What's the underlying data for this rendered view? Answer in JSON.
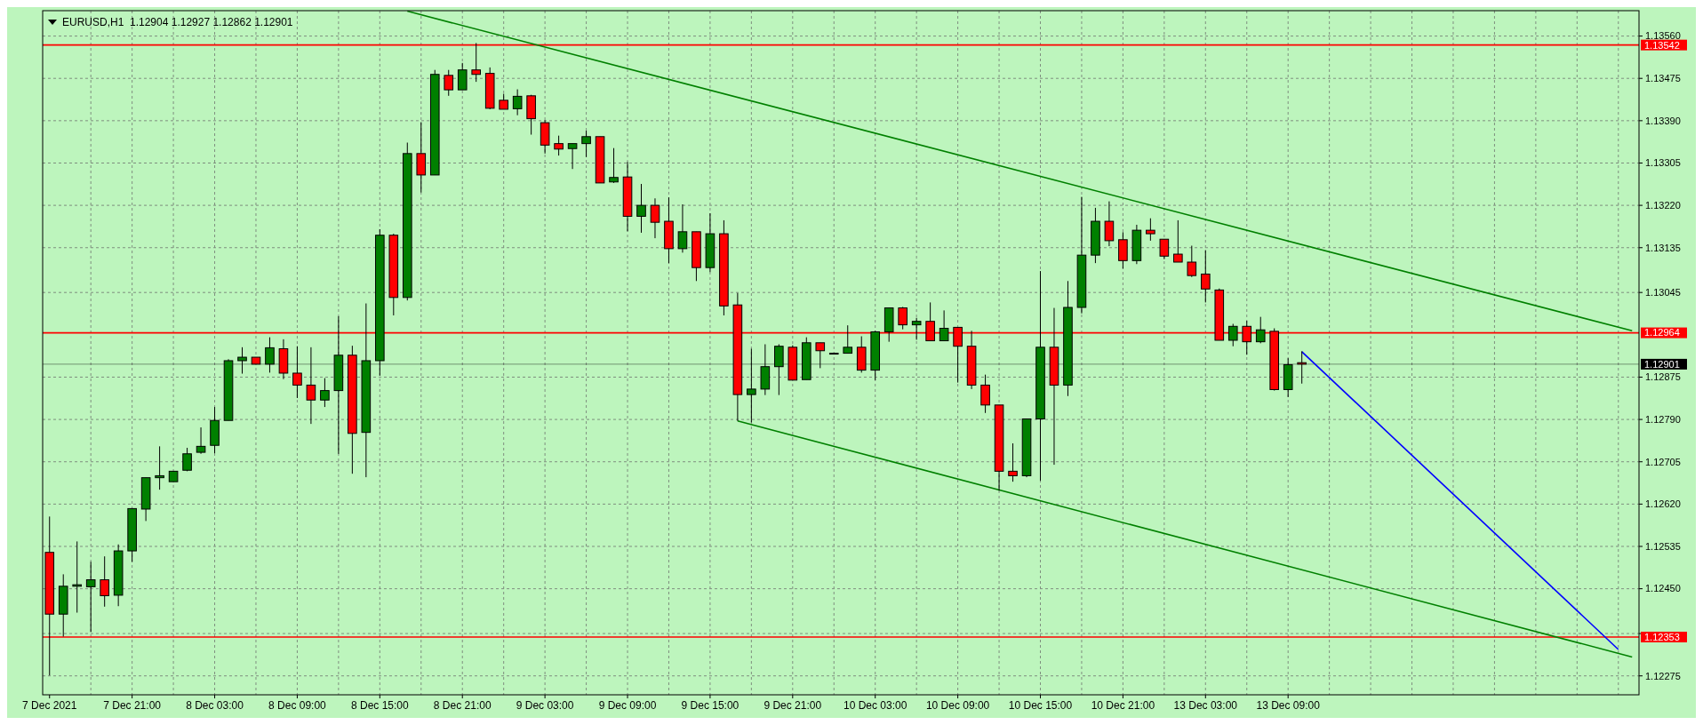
{
  "chart_data": {
    "type": "candlestick",
    "title": "EURUSD,H1  1.12904 1.12927 1.12862 1.12901",
    "categories": [
      "7 Dec 2021",
      null,
      null,
      null,
      null,
      null,
      "7 Dec 21:00",
      null,
      null,
      null,
      null,
      null,
      "8 Dec 03:00",
      null,
      null,
      null,
      null,
      null,
      "8 Dec 09:00",
      null,
      null,
      null,
      null,
      null,
      "8 Dec 15:00",
      null,
      null,
      null,
      null,
      null,
      "8 Dec 21:00",
      null,
      null,
      null,
      null,
      null,
      "9 Dec 03:00",
      null,
      null,
      null,
      null,
      null,
      "9 Dec 09:00",
      null,
      null,
      null,
      null,
      null,
      "9 Dec 15:00",
      null,
      null,
      null,
      null,
      null,
      "9 Dec 21:00",
      null,
      null,
      null,
      null,
      null,
      "10 Dec 03:00",
      null,
      null,
      null,
      null,
      null,
      "10 Dec 09:00",
      null,
      null,
      null,
      null,
      null,
      "10 Dec 15:00",
      null,
      null,
      null,
      null,
      null,
      "10 Dec 21:00",
      null,
      null,
      null,
      null,
      null,
      "13 Dec 03:00",
      null,
      null,
      null,
      null,
      null,
      "13 Dec 09:00",
      null,
      null,
      null,
      null,
      null,
      null,
      null,
      null,
      null,
      null,
      null,
      null,
      null,
      null,
      null,
      null,
      null,
      null,
      null,
      null,
      null,
      null,
      null,
      null,
      null
    ],
    "ohlc": [
      [
        1.12523,
        1.12595,
        1.12276,
        1.12399
      ],
      [
        1.12399,
        1.12479,
        1.12354,
        1.12455
      ],
      [
        1.12455,
        1.12545,
        1.12402,
        1.12458
      ],
      [
        1.12454,
        1.12504,
        1.12363,
        1.12468
      ],
      [
        1.12468,
        1.12515,
        1.12414,
        1.12436
      ],
      [
        1.12437,
        1.12539,
        1.12415,
        1.12526
      ],
      [
        1.12526,
        1.12611,
        1.12504,
        1.12611
      ],
      [
        1.1261,
        1.12673,
        1.12586,
        1.12673
      ],
      [
        1.12673,
        1.12736,
        1.12649,
        1.12677
      ],
      [
        1.12665,
        1.12686,
        1.12665,
        1.12686
      ],
      [
        1.12688,
        1.12733,
        1.12686,
        1.12721
      ],
      [
        1.12724,
        1.12774,
        1.12721,
        1.12736
      ],
      [
        1.12738,
        1.12815,
        1.12722,
        1.12788
      ],
      [
        1.12788,
        1.12911,
        1.12788,
        1.12908
      ],
      [
        1.12908,
        1.12935,
        1.12882,
        1.12915
      ],
      [
        1.12915,
        1.12915,
        1.12901,
        1.12901
      ],
      [
        1.12901,
        1.12955,
        1.12884,
        1.12934
      ],
      [
        1.12932,
        1.12951,
        1.12871,
        1.12883
      ],
      [
        1.12883,
        1.12937,
        1.12833,
        1.12859
      ],
      [
        1.12859,
        1.12935,
        1.12781,
        1.12829
      ],
      [
        1.12829,
        1.12873,
        1.12815,
        1.12848
      ],
      [
        1.12848,
        1.12997,
        1.12721,
        1.12919
      ],
      [
        1.12919,
        1.12938,
        1.12681,
        1.12762
      ],
      [
        1.12764,
        1.13023,
        1.12674,
        1.12908
      ],
      [
        1.12908,
        1.13172,
        1.12878,
        1.1316
      ],
      [
        1.1316,
        1.13163,
        1.12999,
        1.13035
      ],
      [
        1.13035,
        1.13346,
        1.13029,
        1.13324
      ],
      [
        1.13324,
        1.13387,
        1.13246,
        1.13281
      ],
      [
        1.13281,
        1.13492,
        1.13281,
        1.13483
      ],
      [
        1.13481,
        1.13492,
        1.1344,
        1.13452
      ],
      [
        1.13452,
        1.13506,
        1.13452,
        1.13492
      ],
      [
        1.13492,
        1.13546,
        1.13468,
        1.13483
      ],
      [
        1.13485,
        1.13497,
        1.13413,
        1.13415
      ],
      [
        1.13431,
        1.13444,
        1.13413,
        1.13413
      ],
      [
        1.13414,
        1.13453,
        1.13401,
        1.13439
      ],
      [
        1.1344,
        1.13442,
        1.13362,
        1.13394
      ],
      [
        1.13386,
        1.13391,
        1.13324,
        1.13341
      ],
      [
        1.13344,
        1.1336,
        1.1332,
        1.13333
      ],
      [
        1.13334,
        1.13344,
        1.13293,
        1.13344
      ],
      [
        1.13344,
        1.1337,
        1.13317,
        1.13358
      ],
      [
        1.13358,
        1.13358,
        1.13265,
        1.13265
      ],
      [
        1.13267,
        1.13335,
        1.13265,
        1.13276
      ],
      [
        1.13277,
        1.13307,
        1.13168,
        1.13198
      ],
      [
        1.13198,
        1.13263,
        1.13165,
        1.1322
      ],
      [
        1.1322,
        1.13234,
        1.13154,
        1.13186
      ],
      [
        1.13188,
        1.13236,
        1.13104,
        1.13133
      ],
      [
        1.13133,
        1.13222,
        1.13125,
        1.13167
      ],
      [
        1.13167,
        1.13167,
        1.13068,
        1.13095
      ],
      [
        1.13095,
        1.13204,
        1.13086,
        1.13163
      ],
      [
        1.13163,
        1.1319,
        1.12999,
        1.13018
      ],
      [
        1.1302,
        1.13044,
        1.12787,
        1.1284
      ],
      [
        1.1284,
        1.12932,
        1.12784,
        1.12851
      ],
      [
        1.12851,
        1.12941,
        1.12839,
        1.12896
      ],
      [
        1.12896,
        1.12941,
        1.12839,
        1.12937
      ],
      [
        1.12935,
        1.12939,
        1.12869,
        1.12869
      ],
      [
        1.1287,
        1.12955,
        1.1287,
        1.12944
      ],
      [
        1.12944,
        1.12944,
        1.12893,
        1.12928
      ],
      [
        1.12923,
        1.12924,
        1.12922,
        1.12923
      ],
      [
        1.12923,
        1.12979,
        1.12923,
        1.12935
      ],
      [
        1.12935,
        1.12957,
        1.12884,
        1.12889
      ],
      [
        1.12889,
        1.12968,
        1.12869,
        1.12966
      ],
      [
        1.12966,
        1.13014,
        1.12946,
        1.13014
      ],
      [
        1.13014,
        1.13016,
        1.12971,
        1.1298
      ],
      [
        1.1298,
        1.12994,
        1.1295,
        1.12987
      ],
      [
        1.12987,
        1.13025,
        1.12948,
        1.12948
      ],
      [
        1.12948,
        1.13009,
        1.12948,
        1.12973
      ],
      [
        1.12975,
        1.12975,
        1.12864,
        1.12937
      ],
      [
        1.12937,
        1.12968,
        1.12851,
        1.12859
      ],
      [
        1.12859,
        1.1288,
        1.12803,
        1.12819
      ],
      [
        1.12819,
        1.12819,
        1.12647,
        1.12686
      ],
      [
        1.12686,
        1.12742,
        1.12665,
        1.12677
      ],
      [
        1.12677,
        1.12791,
        1.12674,
        1.12791
      ],
      [
        1.12791,
        1.13088,
        1.12667,
        1.12935
      ],
      [
        1.12935,
        1.13014,
        1.12699,
        1.12859
      ],
      [
        1.12859,
        1.13068,
        1.12837,
        1.13015
      ],
      [
        1.13015,
        1.13237,
        1.13003,
        1.1312
      ],
      [
        1.1312,
        1.13215,
        1.13104,
        1.13188
      ],
      [
        1.13188,
        1.13228,
        1.13138,
        1.13149
      ],
      [
        1.13151,
        1.13166,
        1.13093,
        1.13109
      ],
      [
        1.13109,
        1.13181,
        1.13102,
        1.1317
      ],
      [
        1.1317,
        1.13194,
        1.13149,
        1.13163
      ],
      [
        1.13152,
        1.13152,
        1.13112,
        1.13118
      ],
      [
        1.13122,
        1.1319,
        1.13106,
        1.13106
      ],
      [
        1.13106,
        1.13139,
        1.13076,
        1.13079
      ],
      [
        1.13082,
        1.1313,
        1.13025,
        1.13052
      ],
      [
        1.1305,
        1.13053,
        1.12949,
        1.12949
      ],
      [
        1.12949,
        1.12982,
        1.12937,
        1.12977
      ],
      [
        1.12977,
        1.12988,
        1.1292,
        1.12946
      ],
      [
        1.12946,
        1.12996,
        1.12943,
        1.1297
      ],
      [
        1.12967,
        1.12973,
        1.12848,
        1.1285
      ],
      [
        1.1285,
        1.12913,
        1.12835,
        1.129
      ],
      [
        1.12904,
        1.12927,
        1.12862,
        1.12901
      ],
      null,
      null,
      null,
      null,
      null,
      null,
      null,
      null,
      null,
      null,
      null,
      null,
      null,
      null,
      null,
      null,
      null,
      null,
      null,
      null,
      null,
      null,
      null,
      null
    ],
    "colors": [
      "#ff0000",
      "#008000",
      "#008000",
      "#008000",
      "#ff0000",
      "#008000",
      "#008000",
      "#008000",
      "#008000",
      "#008000",
      "#008000",
      "#008000",
      "#008000",
      "#008000",
      "#008000",
      "#ff0000",
      "#008000",
      "#ff0000",
      "#ff0000",
      "#ff0000",
      "#008000",
      "#008000",
      "#ff0000",
      "#008000",
      "#008000",
      "#ff0000",
      "#008000",
      "#ff0000",
      "#008000",
      "#ff0000",
      "#008000",
      "#ff0000",
      "#ff0000",
      "#ff0000",
      "#008000",
      "#ff0000",
      "#ff0000",
      "#ff0000",
      "#008000",
      "#008000",
      "#ff0000",
      "#008000",
      "#ff0000",
      "#008000",
      "#ff0000",
      "#ff0000",
      "#008000",
      "#ff0000",
      "#008000",
      "#ff0000",
      "#ff0000",
      "#008000",
      "#008000",
      "#008000",
      "#ff0000",
      "#008000",
      "#ff0000",
      "#008000",
      "#008000",
      "#ff0000",
      "#008000",
      "#008000",
      "#ff0000",
      "#008000",
      "#ff0000",
      "#008000",
      "#ff0000",
      "#ff0000",
      "#ff0000",
      "#ff0000",
      "#ff0000",
      "#008000",
      "#008000",
      "#ff0000",
      "#008000",
      "#008000",
      "#008000",
      "#ff0000",
      "#ff0000",
      "#008000",
      "#ff0000",
      "#ff0000",
      "#ff0000",
      "#ff0000",
      "#ff0000",
      "#ff0000",
      "#008000",
      "#ff0000",
      "#008000",
      "#ff0000",
      "#008000",
      "#ff0000",
      null,
      null,
      null,
      null,
      null,
      null,
      null,
      null,
      null,
      null,
      null,
      null,
      null,
      null,
      null,
      null,
      null,
      null,
      null,
      null,
      null,
      null,
      null,
      null
    ],
    "series": [
      {
        "type": "line",
        "color": "#008000",
        "values": [
          null,
          null,
          null,
          null,
          null,
          null,
          null,
          null,
          null,
          null,
          null,
          null,
          null,
          null,
          null,
          null,
          null,
          null,
          null,
          null,
          null,
          null,
          null,
          null,
          null,
          null,
          1.1361,
          null,
          null,
          null,
          null,
          null,
          null,
          null,
          null,
          null,
          null,
          null,
          null,
          null,
          null,
          null,
          null,
          null,
          null,
          null,
          null,
          null,
          null,
          null,
          null,
          null,
          null,
          null,
          null,
          null,
          null,
          null,
          null,
          null,
          null,
          null,
          null,
          null,
          null,
          null,
          null,
          null,
          null,
          null,
          null,
          null,
          null,
          null,
          null,
          null,
          null,
          null,
          null,
          null,
          null,
          null,
          null,
          null,
          null,
          null,
          null,
          null,
          null,
          null,
          null,
          null,
          null,
          null,
          null,
          null,
          null,
          null,
          null,
          null,
          null,
          null,
          null,
          null,
          null,
          null,
          null,
          null,
          null,
          null,
          null,
          null,
          null,
          null,
          null,
          1.12968
        ]
      },
      {
        "type": "line",
        "color": "#008000",
        "values": [
          null,
          null,
          null,
          null,
          null,
          null,
          null,
          null,
          null,
          null,
          null,
          null,
          null,
          null,
          null,
          null,
          null,
          null,
          null,
          null,
          null,
          null,
          null,
          null,
          null,
          null,
          null,
          null,
          null,
          null,
          null,
          null,
          null,
          null,
          null,
          null,
          null,
          null,
          null,
          null,
          null,
          null,
          null,
          null,
          null,
          null,
          null,
          null,
          null,
          null,
          1.12787,
          null,
          null,
          null,
          null,
          null,
          null,
          null,
          null,
          null,
          null,
          null,
          null,
          null,
          null,
          null,
          null,
          null,
          null,
          null,
          null,
          null,
          null,
          null,
          null,
          null,
          null,
          null,
          null,
          null,
          null,
          null,
          null,
          null,
          null,
          null,
          null,
          null,
          null,
          null,
          null,
          null,
          null,
          null,
          null,
          null,
          null,
          null,
          null,
          null,
          null,
          null,
          null,
          null,
          null,
          null,
          null,
          null,
          null,
          null,
          null,
          null,
          null,
          null,
          null,
          1.12313
        ]
      },
      {
        "type": "line",
        "color": "#0000ff",
        "values": [
          null,
          null,
          null,
          null,
          null,
          null,
          null,
          null,
          null,
          null,
          null,
          null,
          null,
          null,
          null,
          null,
          null,
          null,
          null,
          null,
          null,
          null,
          null,
          null,
          null,
          null,
          null,
          null,
          null,
          null,
          null,
          null,
          null,
          null,
          null,
          null,
          null,
          null,
          null,
          null,
          null,
          null,
          null,
          null,
          null,
          null,
          null,
          null,
          null,
          null,
          null,
          null,
          null,
          null,
          null,
          null,
          null,
          null,
          null,
          null,
          null,
          null,
          null,
          null,
          null,
          null,
          null,
          null,
          null,
          null,
          null,
          null,
          null,
          null,
          null,
          null,
          null,
          null,
          null,
          null,
          null,
          null,
          null,
          null,
          null,
          null,
          null,
          null,
          null,
          null,
          null,
          1.12926,
          null,
          null,
          null,
          null,
          null,
          null,
          null,
          null,
          null,
          null,
          null,
          null,
          null,
          null,
          null,
          null,
          null,
          null,
          null,
          null,
          null,
          null,
          1.12328,
          null
        ]
      }
    ],
    "ylim": [
      1.12237,
      1.13611
    ],
    "yticks": [
      {
        "value": 1.1356,
        "label": "1.13560"
      },
      {
        "value": 1.13475,
        "label": "1.13475"
      },
      {
        "value": 1.1339,
        "label": "1.13390"
      },
      {
        "value": 1.13305,
        "label": "1.13305"
      },
      {
        "value": 1.1322,
        "label": "1.13220"
      },
      {
        "value": 1.13135,
        "label": "1.13135"
      },
      {
        "value": 1.13045,
        "label": "1.13045"
      },
      {
        "value": 1.12875,
        "label": "1.12875"
      },
      {
        "value": 1.1279,
        "label": "1.12790"
      },
      {
        "value": 1.12705,
        "label": "1.12705"
      },
      {
        "value": 1.1262,
        "label": "1.12620"
      },
      {
        "value": 1.12535,
        "label": "1.12535"
      },
      {
        "value": 1.1245,
        "label": "1.12450"
      },
      {
        "value": 1.1236,
        "label": null
      },
      {
        "value": 1.12275,
        "label": "1.12275"
      }
    ],
    "ref_lines": [
      {
        "axis": "y",
        "value": 1.13542,
        "label": "1.13542",
        "color": "#ff0000"
      },
      {
        "axis": "y",
        "value": 1.12964,
        "label": "1.12964",
        "color": "#ff0000"
      },
      {
        "axis": "y",
        "value": 1.12353,
        "label": "1.12353",
        "color": "#ff0000"
      },
      {
        "axis": "y",
        "value": 1.12901,
        "label": "1.12901",
        "color": "#000000"
      }
    ],
    "grid": true
  }
}
